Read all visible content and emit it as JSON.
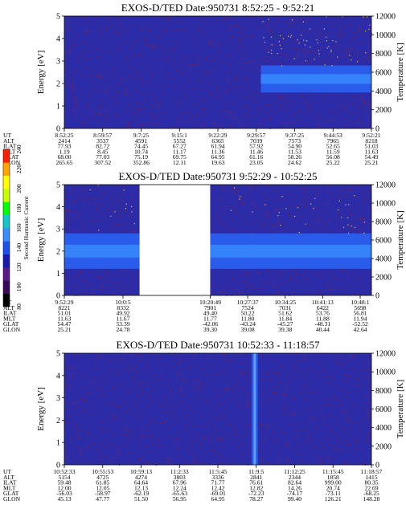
{
  "colorbar": {
    "label": "Second Harmonic Current",
    "ticks": [
      "80",
      "100",
      "120",
      "140",
      "160",
      "180",
      "200",
      "220",
      "240"
    ],
    "colors": [
      "#000000",
      "#3a0a5a",
      "#5a1a8a",
      "#1a1ab0",
      "#1e50f0",
      "#3c8cff",
      "#10c8c8",
      "#00ff00",
      "#c8ff00",
      "#ffff00",
      "#ffa500",
      "#ff2000"
    ]
  },
  "colors": {
    "background": "#2c2ca8",
    "speckle": "#8a2040",
    "band": "#2a62f2",
    "band_core": "#3890ff",
    "spike": "#5aa0ff",
    "hot_dots": "#e0c060"
  },
  "row_labels": [
    "UT",
    "ALT",
    "ILAT",
    "MLT",
    "GLAT",
    "GLON"
  ],
  "chart_data": [
    {
      "type": "heatmap",
      "title": "EXOS-D/TED   Date:950731  8:52:25 - 9:52:21",
      "ylabel": "Energy [eV]",
      "y2label": "Temperature [K]",
      "ylim": [
        0,
        5
      ],
      "y2lim": [
        0,
        12000
      ],
      "yticks": [
        "0",
        "1",
        "2",
        "3",
        "4",
        "5"
      ],
      "y2ticks": [
        "0",
        "2000",
        "4000",
        "6000",
        "8000",
        "10000",
        "12000"
      ],
      "gaps": [],
      "band": {
        "x_start_frac": 0.64,
        "energy_low": 1.6,
        "energy_high": 2.8
      },
      "columns": [
        {
          "UT": "8:52:25",
          "ALT": "2414",
          "ILAT": "77.93",
          "MLT": "1.19",
          "GLAT": "68.00",
          "GLON": "265.65"
        },
        {
          "UT": "8:59:57",
          "ALT": "3537",
          "ILAT": "82.72",
          "MLT": "8.45",
          "GLAT": "77.03",
          "GLON": "307.52"
        },
        {
          "UT": "9:7:25",
          "ALT": "4591",
          "ILAT": "74.45",
          "MLT": "10.74",
          "GLAT": "75.19",
          "GLON": "352.86"
        },
        {
          "UT": "9:15:1",
          "ALT": "5552",
          "ILAT": "67.27",
          "MLT": "11.17",
          "GLAT": "69.75",
          "GLON": "12.11"
        },
        {
          "UT": "9:22:29",
          "ALT": "6365",
          "ILAT": "61.94",
          "MLT": "11.36",
          "GLAT": "64.95",
          "GLON": "19.63"
        },
        {
          "UT": "9:29:57",
          "ALT": "7039",
          "ILAT": "57.92",
          "MLT": "11.46",
          "GLAT": "61.16",
          "GLON": "23.05"
        },
        {
          "UT": "9:37:25",
          "ALT": "7573",
          "ILAT": "54.90",
          "MLT": "11.53",
          "GLAT": "58.26",
          "GLON": "24.62"
        },
        {
          "UT": "9:44:53",
          "ALT": "7965",
          "ILAT": "52.65",
          "MLT": "11.59",
          "GLAT": "56.08",
          "GLON": "25.22"
        },
        {
          "UT": "9:52:21",
          "ALT": "8218",
          "ILAT": "51.03",
          "MLT": "11.63",
          "GLAT": "54.49",
          "GLON": "25.21"
        }
      ]
    },
    {
      "type": "heatmap",
      "title": "EXOS-D/TED   Date:950731  9:52:29 - 10:52:25",
      "ylabel": "Energy [eV]",
      "y2label": "Temperature [K]",
      "ylim": [
        0,
        5
      ],
      "y2lim": [
        0,
        12000
      ],
      "yticks": [
        "0",
        "1",
        "2",
        "3",
        "4",
        "5"
      ],
      "y2ticks": [
        "0",
        "2000",
        "4000",
        "6000",
        "8000",
        "10000",
        "12000"
      ],
      "gaps": [
        {
          "from_frac": 0.245,
          "to_frac": 0.475
        }
      ],
      "band": {
        "x_start_frac": 0.0,
        "energy_low": 1.2,
        "energy_high": 2.8
      },
      "columns": [
        {
          "UT": "9:52:29",
          "ALT": "8221",
          "ILAT": "51.01",
          "MLT": "11.63",
          "GLAT": "54.47",
          "GLON": "25.21"
        },
        {
          "UT": "10:0:5",
          "ALT": "8332",
          "ILAT": "49.92",
          "MLT": "11.67",
          "GLAT": "53.39",
          "GLON": "24.78"
        },
        {
          "UT": "10:20:49",
          "ALT": "7901",
          "ILAT": "49.40",
          "MLT": "11.77",
          "GLAT": "-42.06",
          "GLON": "39.30"
        },
        {
          "UT": "10:27:37",
          "ALT": "7524",
          "ILAT": "50.22",
          "MLT": "11.80",
          "GLAT": "-43.24",
          "GLON": "39.08"
        },
        {
          "UT": "10:34:25",
          "ALT": "7031",
          "ILAT": "51.62",
          "MLT": "11.84",
          "GLAT": "-45.27",
          "GLON": "39.38"
        },
        {
          "UT": "10:41:13",
          "ALT": "6422",
          "ILAT": "53.76",
          "MLT": "11.88",
          "GLAT": "-48.31",
          "GLON": "40.44"
        },
        {
          "UT": "10:48:1",
          "ALT": "5698",
          "ILAT": "56.81",
          "MLT": "11.94",
          "GLAT": "-52.52",
          "GLON": "42.64"
        }
      ]
    },
    {
      "type": "heatmap",
      "title": "EXOS-D/TED   Date:950731  10:52:33 - 11:18:57",
      "ylabel": "Energy [eV]",
      "y2label": "Temperature [K]",
      "ylim": [
        0,
        5
      ],
      "y2lim": [
        0,
        12000
      ],
      "yticks": [
        "0",
        "1",
        "2",
        "3",
        "4",
        "5"
      ],
      "y2ticks": [
        "0",
        "2000",
        "4000",
        "6000",
        "8000",
        "10000",
        "12000"
      ],
      "gaps": [],
      "spike_frac": 0.62,
      "columns": [
        {
          "UT": "10:52:33",
          "ALT": "5154",
          "ILAT": "59.48",
          "MLT": "12.00",
          "GLAT": "-56.03",
          "GLON": "45.13"
        },
        {
          "UT": "10:55:53",
          "ALT": "4725",
          "ILAT": "61.85",
          "MLT": "12.05",
          "GLAT": "-58.97",
          "GLON": "47.77"
        },
        {
          "UT": "10:59:13",
          "ALT": "4274",
          "ILAT": "64.64",
          "MLT": "12.13",
          "GLAT": "-62.19",
          "GLON": "51.50"
        },
        {
          "UT": "11:2:33",
          "ALT": "3803",
          "ILAT": "67.96",
          "MLT": "12.24",
          "GLAT": "-65.63",
          "GLON": "56.95"
        },
        {
          "UT": "11:5:45",
          "ALT": "3336",
          "ILAT": "71.77",
          "MLT": "12.42",
          "GLAT": "-69.01",
          "GLON": "64.95"
        },
        {
          "UT": "11:9:5",
          "ALT": "2841",
          "ILAT": "76.61",
          "MLT": "12.82",
          "GLAT": "-72.23",
          "GLON": "78.27"
        },
        {
          "UT": "11:12:25",
          "ALT": "2344",
          "ILAT": "82.64",
          "MLT": "14.26",
          "GLAT": "-74.17",
          "GLON": "99.40"
        },
        {
          "UT": "11:15:45",
          "ALT": "1858",
          "ILAT": "999.00",
          "MLT": "20.74",
          "GLAT": "-73.11",
          "GLON": "126.21"
        },
        {
          "UT": "11:18:57",
          "ALT": "1415",
          "ILAT": "80.35",
          "MLT": "22.69",
          "GLAT": "-68.25",
          "GLON": "148.28"
        }
      ]
    }
  ]
}
